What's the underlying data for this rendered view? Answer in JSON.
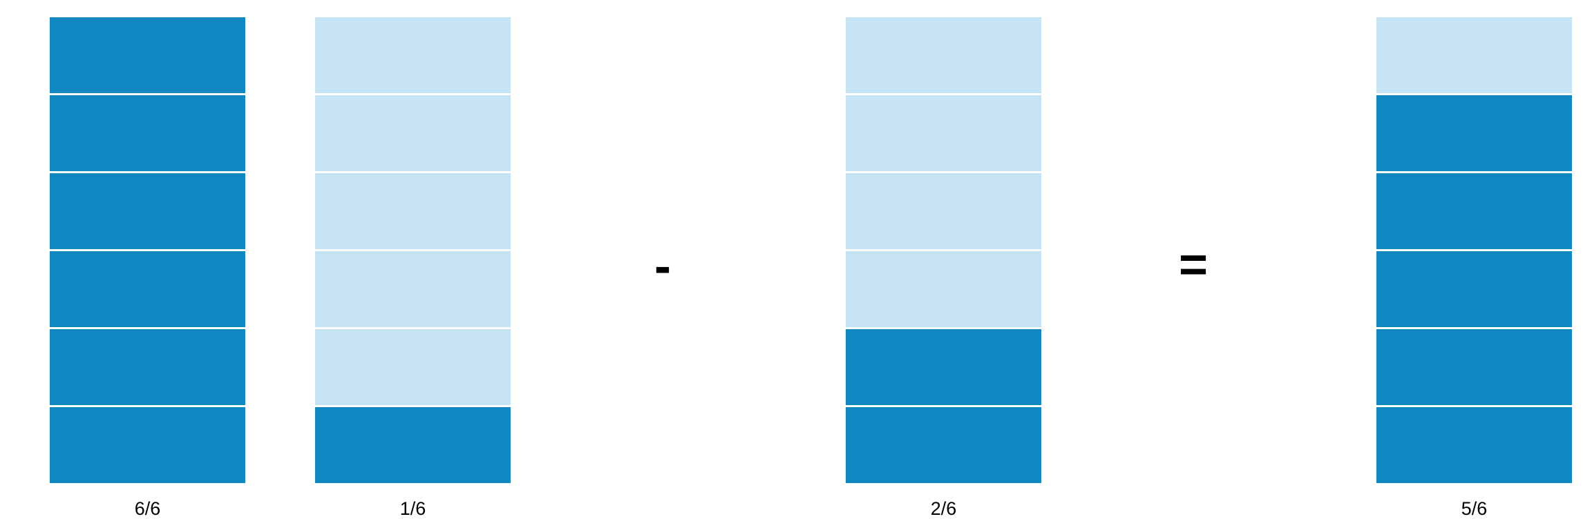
{
  "colors": {
    "filled": "#1187c2",
    "empty": "#c5e3f2",
    "divider": "#ffffff"
  },
  "bars": [
    {
      "label": "6/6",
      "denominator": 6,
      "filled": 6
    },
    {
      "label": "1/6",
      "denominator": 6,
      "filled": 1
    },
    {
      "label": "2/6",
      "denominator": 6,
      "filled": 2
    },
    {
      "label": "5/6",
      "denominator": 6,
      "filled": 5
    }
  ],
  "operators": {
    "minus": "-",
    "equals": "="
  }
}
